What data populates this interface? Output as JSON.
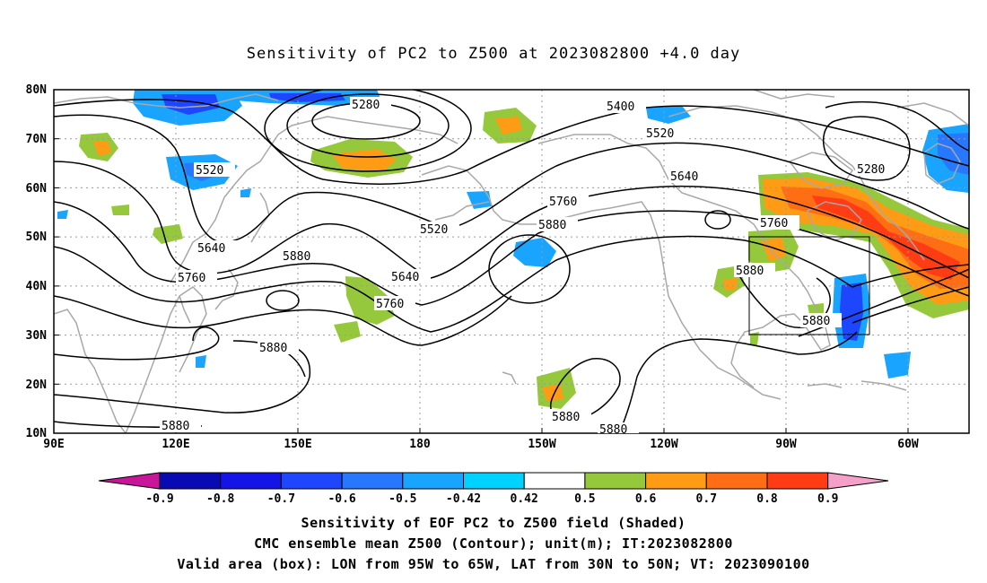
{
  "title": "Sensitivity of PC2 to Z500 at 2023082800 +4.0 day",
  "lat_labels": [
    "80N",
    "70N",
    "60N",
    "50N",
    "40N",
    "30N",
    "20N",
    "10N"
  ],
  "lon_labels": [
    "90E",
    "120E",
    "150E",
    "180",
    "150W",
    "120W",
    "90W",
    "60W"
  ],
  "contour_labels": [
    {
      "text": "5280"
    },
    {
      "text": "5400"
    },
    {
      "text": "5520"
    },
    {
      "text": "5280"
    },
    {
      "text": "5520"
    },
    {
      "text": "5640"
    },
    {
      "text": "5760"
    },
    {
      "text": "5520"
    },
    {
      "text": "5880"
    },
    {
      "text": "5640"
    },
    {
      "text": "5880"
    },
    {
      "text": "5760"
    },
    {
      "text": "5760"
    },
    {
      "text": "5640"
    },
    {
      "text": "5760"
    },
    {
      "text": "5880"
    },
    {
      "text": "5880"
    },
    {
      "text": "5880"
    },
    {
      "text": "5880"
    },
    {
      "text": "5880"
    },
    {
      "text": "5880"
    }
  ],
  "colorbar": {
    "labels": [
      "-0.9",
      "-0.8",
      "-0.7",
      "-0.6",
      "-0.5",
      "-0.42",
      "0.42",
      "0.5",
      "0.6",
      "0.7",
      "0.8",
      "0.9"
    ],
    "colors": {
      "lower_tip": "#c8159a",
      "bins": [
        "#0a0ab4",
        "#1414e6",
        "#1e46ff",
        "#2878ff",
        "#19a5ff",
        "#00d2ff",
        "#ffffff",
        "#96c83c",
        "#ff9b14",
        "#ff6e14",
        "#ff3c14",
        "#ff0a0a"
      ],
      "upper_tip": "#f5a0c8"
    }
  },
  "valid_box": {
    "lon_min": "95W",
    "lon_max": "65W",
    "lat_min": "30N",
    "lat_max": "50N"
  },
  "captions": {
    "line1": "Sensitivity of EOF PC2 to Z500 field (Shaded)",
    "line2": "CMC ensemble mean Z500 (Contour); unit(m); IT:2023082800",
    "line3": "Valid area (box): LON from 95W to 65W, LAT from 30N to 50N; VT: 2023090100"
  },
  "colors": {
    "contour": "#000000",
    "coast": "#a8a8a8",
    "grid": "#9a9a9a",
    "positive_weak": "#96c83c",
    "positive_mid": "#ff9b14",
    "positive_strong": "#ff3c14",
    "negative_weak": "#19a5ff",
    "negative_strong": "#1e46ff"
  }
}
